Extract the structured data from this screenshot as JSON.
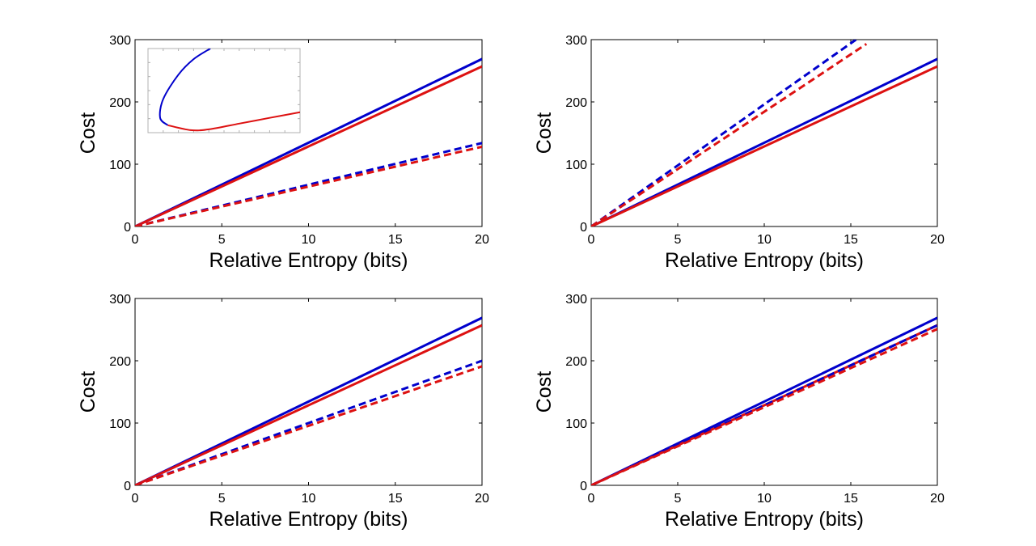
{
  "chart_data": [
    {
      "type": "line",
      "xlabel": "Relative Entropy (bits)",
      "ylabel": "Cost",
      "xlim": [
        0,
        20
      ],
      "ylim": [
        0,
        300
      ],
      "xticks": [
        0,
        5,
        10,
        15,
        20
      ],
      "yticks": [
        0,
        100,
        200,
        300
      ],
      "series": [
        {
          "style": "solid",
          "color": "#0000cc",
          "x": [
            0,
            20
          ],
          "y": [
            0,
            269
          ]
        },
        {
          "style": "solid",
          "color": "#dd1111",
          "x": [
            0,
            20
          ],
          "y": [
            0,
            257
          ]
        },
        {
          "style": "dashed",
          "color": "#0000cc",
          "x": [
            0,
            20
          ],
          "y": [
            0,
            134
          ]
        },
        {
          "style": "dashed",
          "color": "#dd1111",
          "x": [
            0,
            20
          ],
          "y": [
            0,
            128
          ]
        }
      ],
      "inset": {
        "curves": [
          {
            "color": "#0000cc",
            "points": [
              [
                0.41,
                1.0
              ],
              [
                0.3,
                0.87
              ],
              [
                0.2,
                0.68
              ],
              [
                0.1,
                0.38
              ],
              [
                0.08,
                0.15
              ],
              [
                0.13,
                0.06
              ]
            ]
          },
          {
            "color": "#dd1111",
            "points": [
              [
                0.13,
                0.06
              ],
              [
                0.28,
                0.0
              ],
              [
                0.4,
                0.01
              ],
              [
                0.6,
                0.08
              ],
              [
                0.8,
                0.15
              ],
              [
                1.0,
                0.22
              ]
            ]
          }
        ]
      }
    },
    {
      "type": "line",
      "xlabel": "Relative Entropy (bits)",
      "ylabel": "Cost",
      "xlim": [
        0,
        20
      ],
      "ylim": [
        0,
        300
      ],
      "xticks": [
        0,
        5,
        10,
        15,
        20
      ],
      "yticks": [
        0,
        100,
        200,
        300
      ],
      "series": [
        {
          "style": "solid",
          "color": "#0000cc",
          "x": [
            0,
            20
          ],
          "y": [
            0,
            269
          ]
        },
        {
          "style": "solid",
          "color": "#dd1111",
          "x": [
            0,
            20
          ],
          "y": [
            0,
            257
          ]
        },
        {
          "style": "dashed",
          "color": "#0000cc",
          "x": [
            0,
            15.3
          ],
          "y": [
            0,
            300
          ]
        },
        {
          "style": "dashed",
          "color": "#dd1111",
          "x": [
            0,
            15.9
          ],
          "y": [
            0,
            293
          ]
        }
      ]
    },
    {
      "type": "line",
      "xlabel": "Relative Entropy (bits)",
      "ylabel": "Cost",
      "xlim": [
        0,
        20
      ],
      "ylim": [
        0,
        300
      ],
      "xticks": [
        0,
        5,
        10,
        15,
        20
      ],
      "yticks": [
        0,
        100,
        200,
        300
      ],
      "series": [
        {
          "style": "solid",
          "color": "#0000cc",
          "x": [
            0,
            20
          ],
          "y": [
            0,
            269
          ]
        },
        {
          "style": "solid",
          "color": "#dd1111",
          "x": [
            0,
            20
          ],
          "y": [
            0,
            257
          ]
        },
        {
          "style": "dashed",
          "color": "#0000cc",
          "x": [
            0,
            20
          ],
          "y": [
            0,
            200
          ]
        },
        {
          "style": "dashed",
          "color": "#dd1111",
          "x": [
            0,
            20
          ],
          "y": [
            0,
            191
          ]
        }
      ]
    },
    {
      "type": "line",
      "xlabel": "Relative Entropy (bits)",
      "ylabel": "Cost",
      "xlim": [
        0,
        20
      ],
      "ylim": [
        0,
        300
      ],
      "xticks": [
        0,
        5,
        10,
        15,
        20
      ],
      "yticks": [
        0,
        100,
        200,
        300
      ],
      "series": [
        {
          "style": "solid",
          "color": "#0000cc",
          "x": [
            0,
            20
          ],
          "y": [
            0,
            269
          ]
        },
        {
          "style": "solid",
          "color": "#dd1111",
          "x": [
            0,
            20
          ],
          "y": [
            0,
            257
          ]
        },
        {
          "style": "dashed",
          "color": "#0000cc",
          "x": [
            0,
            20
          ],
          "y": [
            0,
            257
          ]
        },
        {
          "style": "dashed",
          "color": "#dd1111",
          "x": [
            0,
            20
          ],
          "y": [
            0,
            251
          ]
        }
      ]
    }
  ]
}
